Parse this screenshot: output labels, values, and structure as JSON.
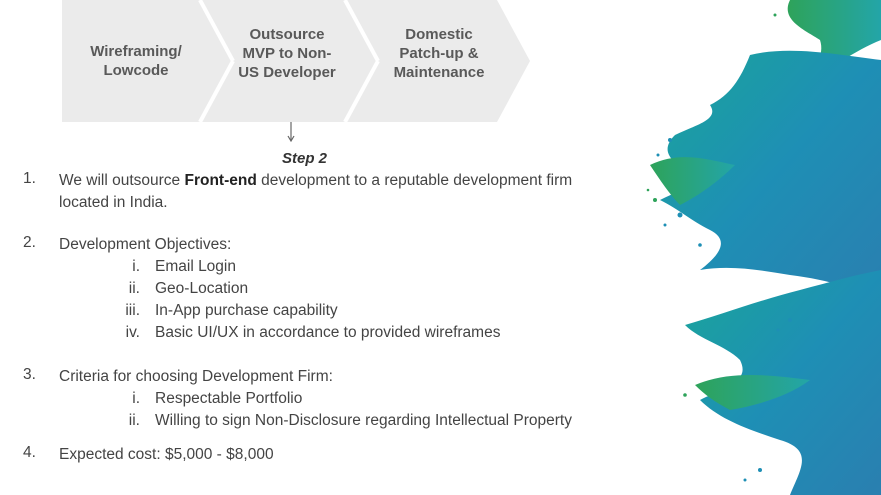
{
  "process": {
    "steps": [
      {
        "label": "Wireframing/ Lowcode"
      },
      {
        "label": "Outsource MVP to Non-US Developer"
      },
      {
        "label": "Domestic Patch-up & Maintenance"
      }
    ],
    "current_step_label": "Step 2"
  },
  "list": {
    "items": [
      {
        "number": "1.",
        "text_before": "We will outsource ",
        "text_bold": "Front-end",
        "text_after": " development to a reputable development firm located  in India."
      },
      {
        "number": "2.",
        "text": "Development Objectives:",
        "sub": [
          {
            "numeral": "i.",
            "text": "Email Login"
          },
          {
            "numeral": "ii.",
            "text": "Geo-Location"
          },
          {
            "numeral": "iii.",
            "text": "In-App purchase capability"
          },
          {
            "numeral": "iv.",
            "text": "Basic UI/UX in accordance to  provided wireframes"
          }
        ]
      },
      {
        "number": "3.",
        "text": "Criteria for choosing Development Firm:",
        "sub": [
          {
            "numeral": "i.",
            "text": "Respectable Portfolio"
          },
          {
            "numeral": "ii.",
            "text": "Willing to sign Non-Disclosure regarding Intellectual Property"
          }
        ]
      },
      {
        "number": "4.",
        "text": "Expected cost:  $5,000 - $8,000"
      }
    ]
  },
  "colors": {
    "chevron_fill": "#ebebeb",
    "text": "#444444",
    "splash_teal": "#1d97b8",
    "splash_green": "#2ea35a"
  }
}
